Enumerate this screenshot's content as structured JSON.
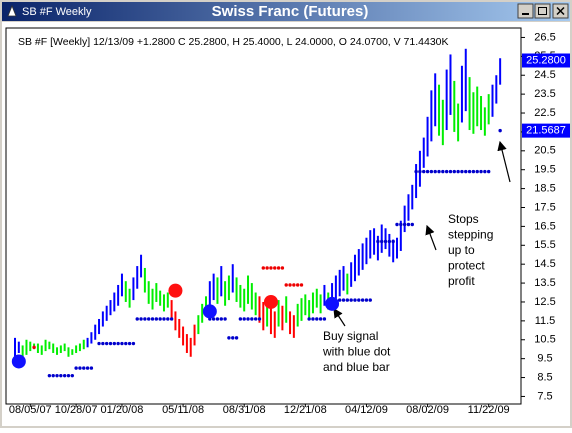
{
  "window_title": "SB #F Weekly",
  "chart_data": {
    "type": "hl-bar",
    "title": "Swiss Franc (Futures)",
    "info": "SB #F [Weekly] 12/13/09 +1.2800 C 25.2800, H 25.4000, L 24.0000, O 24.0700, V 71.4430K",
    "categories": [
      null,
      null,
      null,
      null,
      "08/05/07",
      null,
      null,
      null,
      null,
      null,
      null,
      null,
      null,
      null,
      null,
      null,
      "10/28/07",
      null,
      null,
      null,
      null,
      null,
      null,
      null,
      null,
      null,
      null,
      null,
      "01/20/08",
      null,
      null,
      null,
      null,
      null,
      null,
      null,
      null,
      null,
      null,
      null,
      null,
      null,
      null,
      null,
      "05/11/08",
      null,
      null,
      null,
      null,
      null,
      null,
      null,
      null,
      null,
      null,
      null,
      null,
      null,
      null,
      null,
      "08/31/08",
      null,
      null,
      null,
      null,
      null,
      null,
      null,
      null,
      null,
      null,
      null,
      null,
      null,
      null,
      null,
      "12/21/08",
      null,
      null,
      null,
      null,
      null,
      null,
      null,
      null,
      null,
      null,
      null,
      null,
      null,
      null,
      null,
      "04/12/09",
      null,
      null,
      null,
      null,
      null,
      null,
      null,
      null,
      null,
      null,
      null,
      null,
      null,
      null,
      null,
      "08/02/09",
      null,
      null,
      null,
      null,
      null,
      null,
      null,
      null,
      null,
      null,
      null,
      null,
      null,
      null,
      null,
      "11/22/09",
      null,
      null,
      null
    ],
    "high": [
      10.6,
      10.4,
      10.2,
      10.5,
      10.4,
      10.3,
      10.3,
      10.2,
      10.5,
      10.4,
      10.3,
      10.1,
      10.2,
      10.3,
      10.1,
      10.0,
      10.2,
      10.3,
      10.5,
      10.6,
      10.9,
      11.3,
      11.6,
      12.0,
      12.3,
      12.6,
      13.0,
      13.4,
      14.0,
      13.6,
      13.2,
      13.8,
      14.4,
      15.0,
      14.3,
      13.6,
      13.2,
      13.5,
      13.1,
      12.9,
      13.0,
      12.6,
      12.0,
      11.6,
      11.2,
      10.8,
      10.6,
      11.3,
      11.8,
      12.4,
      12.8,
      13.6,
      14.0,
      13.8,
      14.4,
      13.6,
      13.9,
      14.5,
      13.8,
      13.4,
      13.2,
      13.9,
      13.5,
      13.0,
      12.8,
      12.5,
      12.6,
      12.2,
      12.0,
      12.6,
      12.3,
      12.8,
      12.0,
      11.8,
      12.4,
      12.7,
      12.9,
      12.6,
      13.0,
      13.2,
      12.9,
      13.4,
      13.0,
      13.5,
      13.9,
      14.2,
      14.4,
      14.0,
      14.6,
      15.0,
      15.3,
      15.6,
      15.9,
      16.3,
      16.4,
      16.0,
      16.6,
      16.4,
      16.1,
      15.8,
      15.9,
      16.8,
      17.6,
      18.2,
      18.7,
      19.8,
      20.5,
      21.2,
      22.3,
      23.7,
      24.6,
      24.0,
      23.2,
      24.8,
      25.6,
      24.2,
      23.0,
      25.0,
      25.9,
      24.4,
      23.6,
      23.9,
      23.4,
      22.8,
      23.5,
      24.0,
      24.5,
      25.4
    ],
    "low": [
      9.6,
      9.8,
      9.5,
      9.7,
      9.9,
      10.0,
      9.8,
      9.7,
      9.9,
      10.0,
      9.8,
      9.7,
      9.8,
      9.9,
      9.6,
      9.7,
      9.8,
      9.9,
      10.0,
      10.1,
      10.3,
      10.5,
      10.8,
      11.2,
      11.5,
      11.8,
      12.0,
      12.3,
      12.8,
      12.5,
      12.2,
      12.6,
      13.2,
      13.8,
      13.0,
      12.4,
      12.1,
      12.5,
      12.3,
      12.0,
      12.2,
      11.6,
      11.0,
      10.6,
      10.2,
      9.8,
      9.6,
      10.2,
      10.8,
      11.4,
      11.8,
      12.2,
      12.6,
      12.4,
      12.8,
      12.3,
      12.6,
      13.0,
      12.5,
      12.2,
      12.0,
      12.4,
      12.1,
      11.8,
      11.4,
      11.0,
      11.2,
      10.8,
      10.6,
      11.2,
      11.0,
      11.4,
      10.8,
      10.6,
      11.2,
      11.5,
      11.8,
      11.6,
      11.9,
      12.2,
      11.9,
      12.3,
      12.1,
      12.4,
      12.6,
      12.8,
      13.1,
      12.9,
      13.3,
      13.6,
      13.9,
      14.2,
      14.5,
      14.8,
      15.0,
      14.7,
      15.1,
      15.3,
      14.9,
      14.6,
      14.8,
      15.2,
      16.2,
      16.8,
      17.4,
      18.0,
      18.6,
      19.6,
      20.2,
      21.0,
      21.8,
      21.3,
      20.8,
      21.6,
      22.4,
      21.5,
      21.0,
      22.0,
      22.6,
      21.6,
      21.4,
      21.8,
      21.6,
      21.3,
      21.9,
      22.3,
      23.0,
      24.0
    ],
    "bar_colors": [
      "#0000ff",
      "#0000ff",
      "#00ee00",
      "#00ee00",
      "#00ee00",
      "#00ee00",
      "#00ee00",
      "#00ee00",
      "#00ee00",
      "#00ee00",
      "#00ee00",
      "#00ee00",
      "#00ee00",
      "#00ee00",
      "#00ee00",
      "#00ee00",
      "#00ee00",
      "#00ee00",
      "#00ee00",
      "#0000ff",
      "#0000ff",
      "#0000ff",
      "#0000ff",
      "#0000ff",
      "#0000ff",
      "#0000ff",
      "#0000ff",
      "#0000ff",
      "#0000ff",
      "#00ee00",
      "#00ee00",
      "#0000ff",
      "#0000ff",
      "#0000ff",
      "#00ee00",
      "#00ee00",
      "#00ee00",
      "#00ee00",
      "#00ee00",
      "#00ee00",
      "#00ee00",
      "#ff0000",
      "#ff0000",
      "#ff0000",
      "#ff0000",
      "#ff0000",
      "#ff0000",
      "#ff0000",
      "#00ee00",
      "#00ee00",
      "#00ee00",
      "#0000ff",
      "#0000ff",
      "#00ee00",
      "#0000ff",
      "#00ee00",
      "#00ee00",
      "#0000ff",
      "#00ee00",
      "#00ee00",
      "#00ee00",
      "#00ee00",
      "#00ee00",
      "#00ee00",
      "#ff0000",
      "#ff0000",
      "#00ee00",
      "#ff0000",
      "#ff0000",
      "#00ee00",
      "#ff0000",
      "#00ee00",
      "#ff0000",
      "#ff0000",
      "#00ee00",
      "#00ee00",
      "#00ee00",
      "#00ee00",
      "#00ee00",
      "#00ee00",
      "#00ee00",
      "#0000ff",
      "#00ee00",
      "#0000ff",
      "#0000ff",
      "#0000ff",
      "#0000ff",
      "#00ee00",
      "#0000ff",
      "#0000ff",
      "#0000ff",
      "#0000ff",
      "#0000ff",
      "#0000ff",
      "#0000ff",
      "#0000ff",
      "#0000ff",
      "#0000ff",
      "#0000ff",
      "#0000ff",
      "#0000ff",
      "#0000ff",
      "#0000ff",
      "#0000ff",
      "#0000ff",
      "#0000ff",
      "#0000ff",
      "#0000ff",
      "#0000ff",
      "#0000ff",
      "#0000ff",
      "#00ee00",
      "#00ee00",
      "#0000ff",
      "#0000ff",
      "#00ee00",
      "#00ee00",
      "#0000ff",
      "#0000ff",
      "#00ee00",
      "#00ee00",
      "#00ee00",
      "#00ee00",
      "#00ee00",
      "#00ee00",
      "#0000ff",
      "#0000ff",
      "#0000ff"
    ],
    "long_stops": [
      null,
      null,
      null,
      null,
      null,
      null,
      null,
      null,
      null,
      8.6,
      8.6,
      8.6,
      8.6,
      8.6,
      8.6,
      8.6,
      9.0,
      9.0,
      9.0,
      9.0,
      9.0,
      null,
      10.3,
      10.3,
      10.3,
      10.3,
      10.3,
      10.3,
      10.3,
      10.3,
      10.3,
      10.3,
      11.6,
      11.6,
      11.6,
      11.6,
      11.6,
      11.6,
      11.6,
      11.6,
      11.6,
      11.6,
      null,
      null,
      null,
      null,
      null,
      null,
      null,
      null,
      null,
      11.6,
      11.6,
      11.6,
      11.6,
      11.6,
      10.6,
      10.6,
      10.6,
      11.6,
      11.6,
      11.6,
      11.6,
      11.6,
      11.6,
      null,
      null,
      null,
      null,
      null,
      null,
      null,
      null,
      null,
      null,
      null,
      null,
      11.6,
      11.6,
      11.6,
      11.6,
      11.6,
      null,
      null,
      null,
      12.6,
      12.6,
      12.6,
      12.6,
      12.6,
      12.6,
      12.6,
      12.6,
      12.6,
      null,
      15.7,
      15.7,
      15.7,
      15.7,
      15.7,
      16.6,
      16.6,
      16.6,
      16.6,
      16.6,
      19.4,
      19.4,
      19.4,
      19.4,
      19.4,
      19.4,
      19.4,
      19.4,
      19.4,
      19.4,
      19.4,
      19.4,
      19.4,
      19.4,
      19.4,
      19.4,
      19.4,
      19.4,
      19.4,
      19.4,
      null,
      null,
      21.5687
    ],
    "long_stop_color": "#0000cc",
    "short_stops": [
      null,
      null,
      null,
      null,
      null,
      10.1,
      null,
      null,
      null,
      null,
      null,
      null,
      null,
      null,
      null,
      null,
      null,
      null,
      null,
      null,
      null,
      null,
      null,
      null,
      null,
      null,
      null,
      null,
      null,
      null,
      null,
      null,
      null,
      null,
      null,
      null,
      null,
      null,
      null,
      null,
      null,
      null,
      null,
      null,
      null,
      null,
      null,
      null,
      null,
      null,
      null,
      null,
      null,
      null,
      null,
      null,
      null,
      null,
      null,
      null,
      null,
      null,
      null,
      null,
      null,
      14.3,
      14.3,
      14.3,
      14.3,
      14.3,
      14.3,
      13.4,
      13.4,
      13.4,
      13.4,
      13.4,
      null,
      null,
      null,
      null,
      null,
      null,
      null,
      null,
      null,
      null,
      null,
      null,
      null,
      null,
      null,
      null,
      null,
      null,
      null,
      null,
      null,
      null,
      null,
      null,
      null,
      null,
      null,
      null,
      null,
      null,
      null,
      null,
      null,
      null,
      null,
      null,
      null,
      null,
      null,
      null,
      null,
      null,
      null,
      null,
      null,
      null,
      null,
      null,
      null,
      null,
      null,
      null
    ],
    "short_stop_color": "#ee0000",
    "signals": [
      {
        "x": 1,
        "value": 9.35,
        "color": "#1010ff"
      },
      {
        "x": 42,
        "value": 13.1,
        "color": "#ff1010"
      },
      {
        "x": 51,
        "value": 12.0,
        "color": "#1010ff"
      },
      {
        "x": 67,
        "value": 12.5,
        "color": "#ff1010"
      },
      {
        "x": 83,
        "value": 12.4,
        "color": "#1010ff"
      }
    ],
    "price_tags": [
      {
        "value": 25.28,
        "label": "25.2800"
      },
      {
        "value": 21.5687,
        "label": "21.5687"
      }
    ],
    "ylim": [
      7.1,
      27.0
    ],
    "yticks": [
      7.5,
      8.5,
      9.5,
      10.5,
      11.5,
      12.5,
      13.5,
      14.5,
      15.5,
      16.5,
      17.5,
      18.5,
      19.5,
      20.5,
      21.5,
      22.5,
      23.5,
      24.5,
      25.5,
      26.5
    ],
    "annotations": [
      {
        "lines": [
          "Stops",
          "stepping",
          "up to",
          "protect",
          "profit"
        ]
      },
      {
        "lines": [
          "Buy signal",
          "with blue dot",
          "and blue bar"
        ]
      }
    ]
  }
}
